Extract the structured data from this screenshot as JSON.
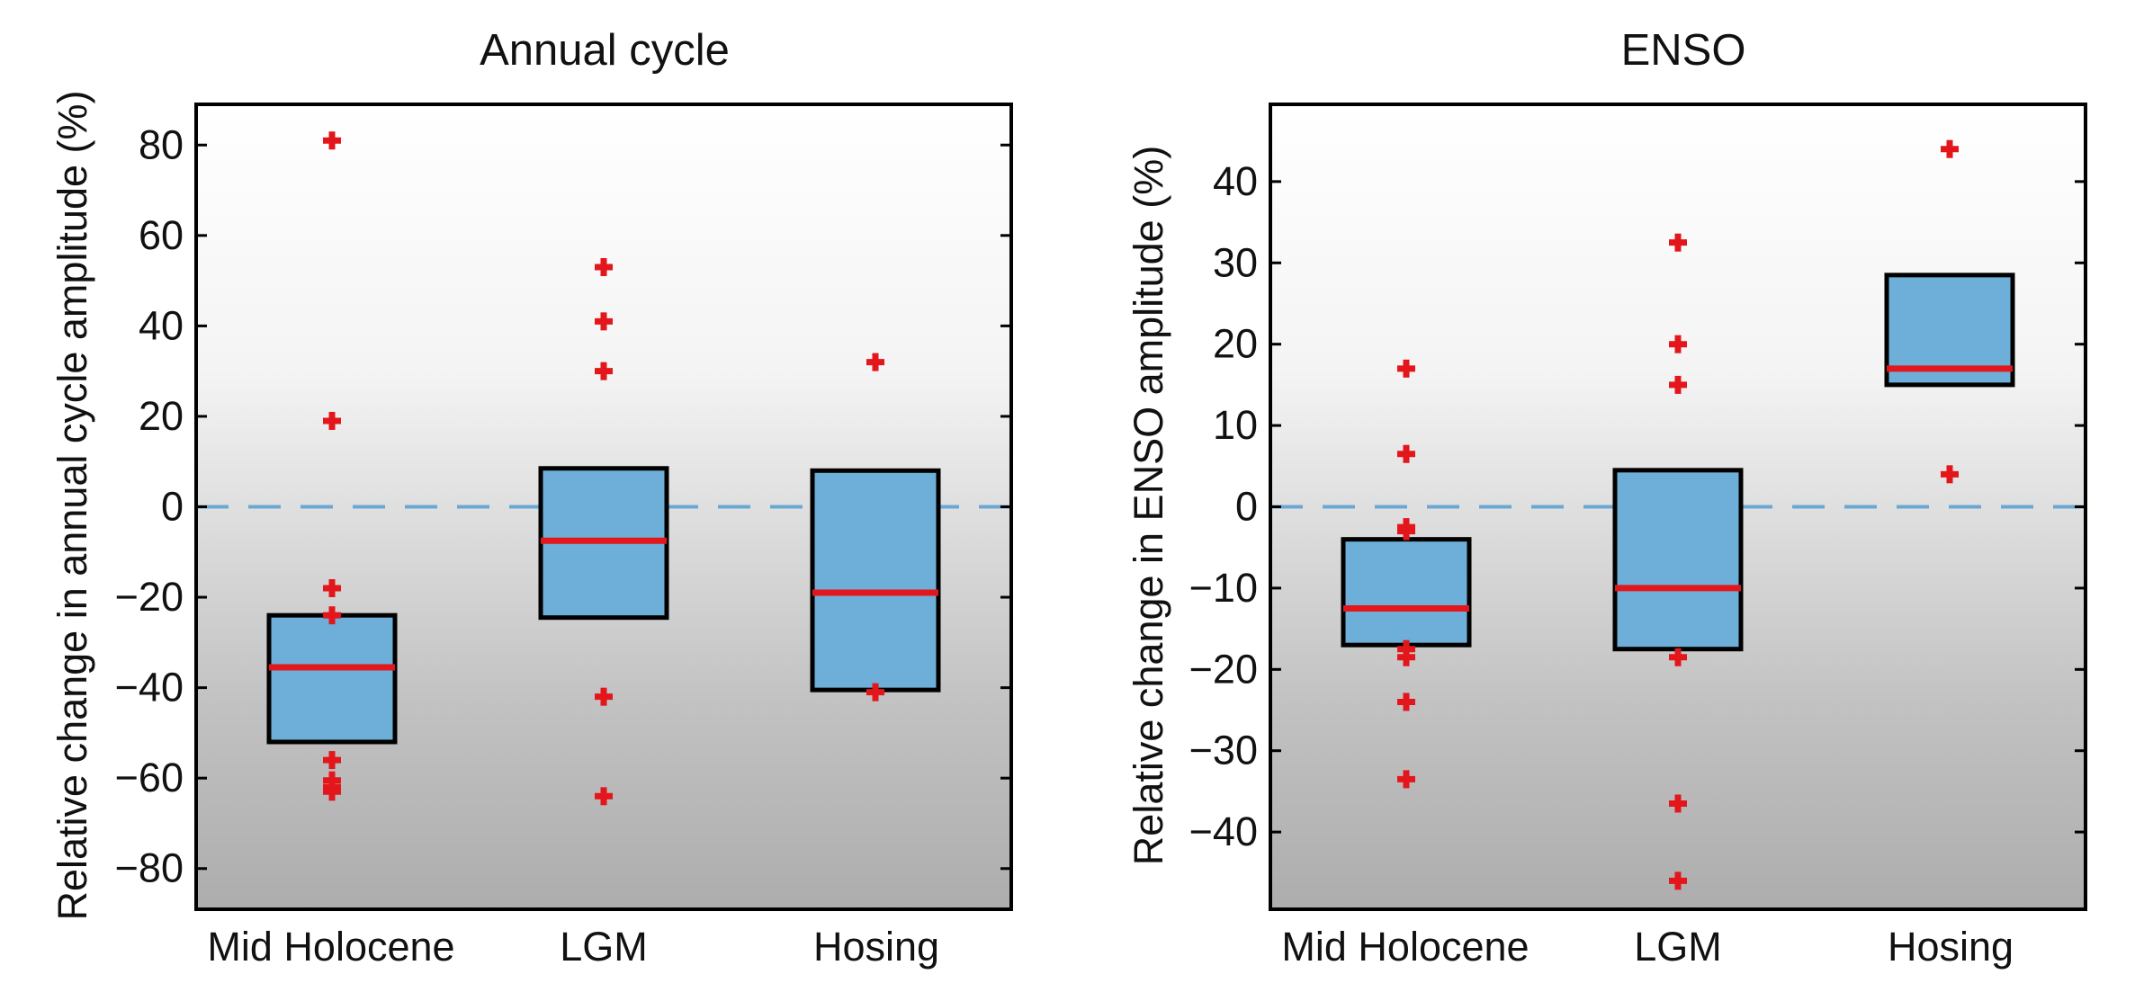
{
  "chart_data": [
    {
      "type": "box",
      "title": "Annual cycle",
      "ylabel": "Relative change in annual cycle amplitude (%)",
      "xlabel": "",
      "ylim": [
        -89,
        89
      ],
      "yticks": [
        80,
        60,
        40,
        20,
        0,
        -20,
        -40,
        -60,
        -80
      ],
      "ytick_labels": [
        "80",
        "60",
        "40",
        "20",
        "0",
        "−20",
        "−40",
        "−60",
        "−80"
      ],
      "zero_line": 0,
      "categories": [
        "Mid Holocene",
        "LGM",
        "Hosing"
      ],
      "boxes": [
        {
          "category": "Mid Holocene",
          "q1": -52,
          "median": -35.5,
          "q3": -24,
          "outliers": [
            81,
            19,
            -18,
            -24,
            -56,
            -60.5,
            -62,
            -63
          ]
        },
        {
          "category": "LGM",
          "q1": -24.5,
          "median": -7.5,
          "q3": 8.5,
          "outliers": [
            53,
            41,
            30,
            -42,
            -64
          ]
        },
        {
          "category": "Hosing",
          "q1": -40.5,
          "median": -19,
          "q3": 8,
          "outliers": [
            32,
            -41
          ]
        }
      ],
      "colors": {
        "box": "#6dafd8",
        "median": "#e3161c",
        "outlier": "#e3161c",
        "zero_line": "#6aa8d4"
      }
    },
    {
      "type": "box",
      "title": "ENSO",
      "ylabel": "Relative change in ENSO amplitude (%)",
      "xlabel": "",
      "ylim": [
        -49.5,
        49.5
      ],
      "yticks": [
        40,
        30,
        20,
        10,
        0,
        -10,
        -20,
        -30,
        -40
      ],
      "ytick_labels": [
        "40",
        "30",
        "20",
        "10",
        "0",
        "−10",
        "−20",
        "−30",
        "−40"
      ],
      "zero_line": 0,
      "categories": [
        "Mid Holocene",
        "LGM",
        "Hosing"
      ],
      "boxes": [
        {
          "category": "Mid Holocene",
          "q1": -17,
          "median": -12.5,
          "q3": -4,
          "outliers": [
            17,
            6.5,
            -2.5,
            -3,
            -17.5,
            -18.5,
            -24,
            -33.5
          ]
        },
        {
          "category": "LGM",
          "q1": -17.5,
          "median": -10,
          "q3": 4.5,
          "outliers": [
            32.5,
            20,
            15,
            -18.5,
            -36.5,
            -46
          ]
        },
        {
          "category": "Hosing",
          "q1": 15,
          "median": 17,
          "q3": 28.5,
          "outliers": [
            44,
            4
          ]
        }
      ],
      "colors": {
        "box": "#6dafd8",
        "median": "#e3161c",
        "outlier": "#e3161c",
        "zero_line": "#6aa8d4"
      }
    }
  ]
}
